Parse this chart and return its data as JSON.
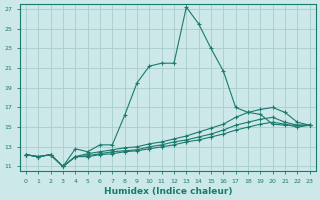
{
  "title": "",
  "xlabel": "Humidex (Indice chaleur)",
  "ylabel": "",
  "bg_color": "#cce8e8",
  "grid_color": "#aacccc",
  "line_color": "#1a7a6e",
  "xlim": [
    -0.5,
    23.5
  ],
  "ylim": [
    10.5,
    27.5
  ],
  "xticks": [
    0,
    1,
    2,
    3,
    4,
    5,
    6,
    7,
    8,
    9,
    10,
    11,
    12,
    13,
    14,
    15,
    16,
    17,
    18,
    19,
    20,
    21,
    22,
    23
  ],
  "yticks": [
    11,
    13,
    15,
    17,
    19,
    21,
    23,
    25,
    27
  ],
  "series": [
    {
      "x": [
        0,
        1,
        2,
        3,
        4,
        5,
        6,
        7,
        8,
        9,
        10,
        11,
        12,
        13,
        14,
        15,
        16,
        17,
        18,
        19,
        20,
        21,
        22,
        23
      ],
      "y": [
        12.2,
        12.0,
        12.2,
        11.0,
        12.8,
        12.5,
        13.2,
        13.2,
        16.2,
        19.5,
        21.2,
        21.5,
        21.5,
        27.2,
        25.5,
        23.0,
        20.7,
        17.0,
        16.5,
        16.3,
        15.3,
        15.2,
        15.2,
        15.2
      ]
    },
    {
      "x": [
        0,
        1,
        2,
        3,
        4,
        5,
        6,
        7,
        8,
        9,
        10,
        11,
        12,
        13,
        14,
        15,
        16,
        17,
        18,
        19,
        20,
        21,
        22,
        23
      ],
      "y": [
        12.2,
        12.0,
        12.2,
        11.0,
        12.0,
        12.3,
        12.5,
        12.7,
        12.9,
        13.0,
        13.3,
        13.5,
        13.8,
        14.1,
        14.5,
        14.9,
        15.3,
        16.0,
        16.5,
        16.8,
        17.0,
        16.5,
        15.5,
        15.2
      ]
    },
    {
      "x": [
        0,
        1,
        2,
        3,
        4,
        5,
        6,
        7,
        8,
        9,
        10,
        11,
        12,
        13,
        14,
        15,
        16,
        17,
        18,
        19,
        20,
        21,
        22,
        23
      ],
      "y": [
        12.2,
        12.0,
        12.2,
        11.0,
        12.0,
        12.1,
        12.3,
        12.5,
        12.6,
        12.7,
        13.0,
        13.2,
        13.5,
        13.7,
        14.0,
        14.3,
        14.7,
        15.2,
        15.5,
        15.8,
        16.0,
        15.5,
        15.2,
        15.2
      ]
    },
    {
      "x": [
        0,
        1,
        2,
        3,
        4,
        5,
        6,
        7,
        8,
        9,
        10,
        11,
        12,
        13,
        14,
        15,
        16,
        17,
        18,
        19,
        20,
        21,
        22,
        23
      ],
      "y": [
        12.2,
        12.0,
        12.2,
        11.0,
        12.0,
        12.0,
        12.2,
        12.3,
        12.5,
        12.6,
        12.8,
        13.0,
        13.2,
        13.5,
        13.7,
        14.0,
        14.3,
        14.7,
        15.0,
        15.3,
        15.5,
        15.3,
        15.0,
        15.2
      ]
    }
  ]
}
